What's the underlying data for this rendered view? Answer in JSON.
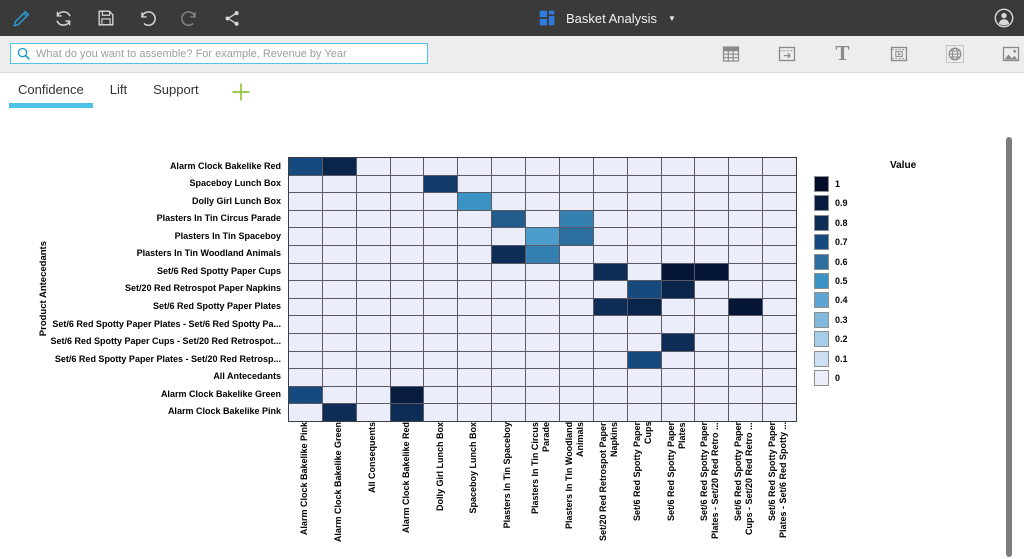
{
  "topbar": {
    "title": "Basket Analysis",
    "accent_blue": "#2d9fd8",
    "bg": "#3a3a3a",
    "left_icon_names": [
      "edit-pencil-icon",
      "refresh-icon",
      "save-icon",
      "undo-icon",
      "redo-icon",
      "share-icon"
    ],
    "right_icon_names": [
      "user-avatar-icon"
    ]
  },
  "assembly_bar": {
    "search_placeholder": "What do you want to assemble? For example, Revenue by Year",
    "search_icon": "search-icon",
    "right_icon_names": [
      "table-icon",
      "move-window-icon",
      "text-icon",
      "video-icon",
      "web-icon",
      "image-icon"
    ]
  },
  "tabs": {
    "items": [
      {
        "label": "Confidence",
        "active": true
      },
      {
        "label": "Lift",
        "active": false
      },
      {
        "label": "Support",
        "active": false
      }
    ],
    "add_icon": "add-tab-icon",
    "active_underline_color": "#4cc2e6",
    "add_color": "#8dc63f"
  },
  "chart_data": {
    "type": "heatmap",
    "ylabel": "Product Antecedants",
    "legend_title": "Value",
    "legend_values": [
      "1",
      "0.9",
      "0.8",
      "0.7",
      "0.6",
      "0.5",
      "0.4",
      "0.3",
      "0.2",
      "0.1",
      "0"
    ],
    "rows": [
      "Alarm Clock Bakelike Red",
      "Spaceboy Lunch Box",
      "Dolly Girl Lunch Box",
      "Plasters In Tin Circus Parade",
      "Plasters In Tin Spaceboy",
      "Plasters In Tin Woodland Animals",
      "Set/6 Red Spotty Paper Cups",
      "Set/20 Red Retrospot Paper Napkins",
      "Set/6 Red Spotty Paper Plates",
      "Set/6 Red Spotty Paper Plates - Set/6 Red Spotty Pa...",
      "Set/6 Red Spotty Paper Cups - Set/20 Red Retrospot...",
      "Set/6 Red Spotty Paper Plates - Set/20 Red Retrosp...",
      "All Antecedants",
      "Alarm Clock Bakelike Green",
      "Alarm Clock Bakelike Pink"
    ],
    "columns": [
      "Alarm Clock Bakelike Pink",
      "Alarm Clock Bakelike Green",
      "All Consequents",
      "Alarm Clock Bakelike Red",
      "Dolly Girl Lunch Box",
      "Spaceboy Lunch Box",
      "Plasters In Tin Spaceboy",
      "Plasters In Tin Circus Parade",
      "Plasters In Tin Woodland Animals",
      "Set/20 Red Retrospot Paper Napkins",
      "Set/6 Red Spotty Paper Cups",
      "Set/6 Red Spotty Paper Plates",
      "Set/6 Red Spotty Paper Plates - Set/20 Red Retro ...",
      "Set/6 Red Spotty Paper Cups - Set/20 Red Retro ...",
      "Set/6 Red Spotty Paper Plates - Set/6 Red Spotty ..."
    ],
    "cells": [
      [
        0,
        0,
        0.7
      ],
      [
        0,
        1,
        0.85
      ],
      [
        1,
        4,
        0.75
      ],
      [
        2,
        5,
        0.5
      ],
      [
        3,
        6,
        0.65
      ],
      [
        3,
        8,
        0.55
      ],
      [
        4,
        7,
        0.45
      ],
      [
        4,
        8,
        0.6
      ],
      [
        5,
        6,
        0.8
      ],
      [
        5,
        7,
        0.55
      ],
      [
        6,
        9,
        0.8
      ],
      [
        6,
        11,
        0.95
      ],
      [
        6,
        12,
        0.95
      ],
      [
        7,
        10,
        0.7
      ],
      [
        7,
        11,
        0.85
      ],
      [
        8,
        9,
        0.8
      ],
      [
        8,
        10,
        0.85
      ],
      [
        8,
        13,
        0.95
      ],
      [
        10,
        11,
        0.8
      ],
      [
        11,
        10,
        0.7
      ],
      [
        13,
        0,
        0.7
      ],
      [
        13,
        3,
        0.9
      ],
      [
        14,
        1,
        0.8
      ],
      [
        14,
        3,
        0.8
      ]
    ],
    "value_range": [
      0,
      1
    ],
    "grid_on": true,
    "legend_position": "right",
    "color_stops": [
      [
        0.0,
        "#ecedfa"
      ],
      [
        0.1,
        "#cde0f3"
      ],
      [
        0.2,
        "#a6cdea"
      ],
      [
        0.3,
        "#81b9df"
      ],
      [
        0.4,
        "#5da6d3"
      ],
      [
        0.5,
        "#3a92c5"
      ],
      [
        0.6,
        "#2c6f9e"
      ],
      [
        0.7,
        "#16497d"
      ],
      [
        0.8,
        "#0d2d57"
      ],
      [
        0.9,
        "#071c3f"
      ],
      [
        1.0,
        "#020d2b"
      ]
    ]
  },
  "scrollbar": {
    "orientation": "vertical"
  }
}
